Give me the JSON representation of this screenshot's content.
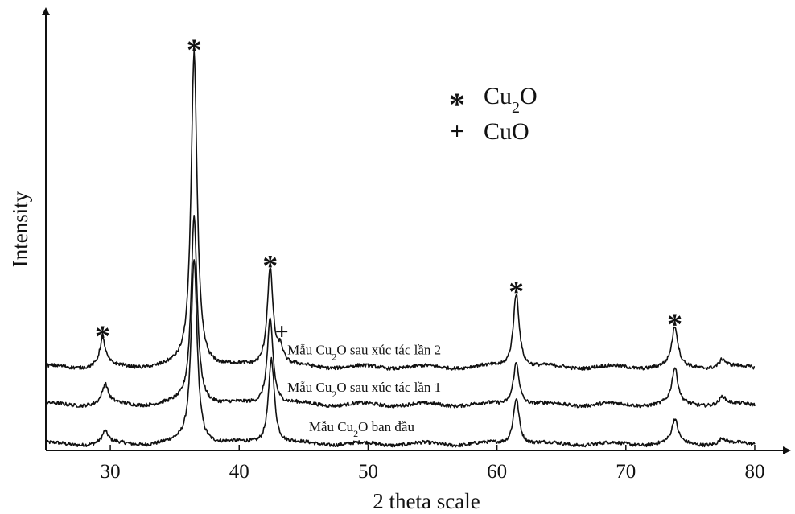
{
  "chart_data": {
    "type": "line",
    "title": "",
    "xlabel": "2 theta scale",
    "ylabel": "Intensity",
    "xlim": [
      25,
      82
    ],
    "ylim": [
      0,
      1.0
    ],
    "x_ticks": [
      30,
      40,
      50,
      60,
      70,
      80
    ],
    "grid": false,
    "y_tick_labels": false,
    "peak_width": 0.28,
    "series": [
      {
        "name": "Mẫu Cu2O ban đầu",
        "offset": 0.0,
        "peaks": [
          [
            29.6,
            0.03
          ],
          [
            36.5,
            0.47
          ],
          [
            42.5,
            0.22
          ],
          [
            61.5,
            0.12
          ],
          [
            73.8,
            0.06
          ],
          [
            77.5,
            0.015
          ]
        ]
      },
      {
        "name": "Mẫu Cu2O sau xúc tác lần 1",
        "offset": 0.1,
        "peaks": [
          [
            29.6,
            0.05
          ],
          [
            36.5,
            0.48
          ],
          [
            42.4,
            0.22
          ],
          [
            61.5,
            0.11
          ],
          [
            73.8,
            0.09
          ],
          [
            77.5,
            0.02
          ]
        ]
      },
      {
        "name": "Mẫu Cu2O sau xúc tác lần 2",
        "offset": 0.195,
        "peaks": [
          [
            29.4,
            0.07
          ],
          [
            36.5,
            0.8
          ],
          [
            42.4,
            0.25
          ],
          [
            43.2,
            0.04
          ],
          [
            61.5,
            0.19
          ],
          [
            73.8,
            0.1
          ],
          [
            77.5,
            0.02
          ]
        ]
      }
    ],
    "series_labels": [
      {
        "label_pre": "Mẫu Cu",
        "label_sub": "2",
        "label_post": "O ban đầu",
        "at_x": 49.5
      },
      {
        "label_pre": "Mẫu Cu",
        "label_sub": "2",
        "label_post": "O sau xúc tác lần 1",
        "at_x": 49.7
      },
      {
        "label_pre": "Mẫu Cu",
        "label_sub": "2",
        "label_post": "O sau xúc tác lần 2",
        "at_x": 49.7
      }
    ],
    "peak_markers": [
      {
        "symbol": "*",
        "x": 29.4
      },
      {
        "symbol": "*",
        "x": 36.5
      },
      {
        "symbol": "*",
        "x": 42.4
      },
      {
        "symbol": "+",
        "x": 43.3
      },
      {
        "symbol": "*",
        "x": 61.5
      },
      {
        "symbol": "*",
        "x": 73.8
      }
    ],
    "legend": {
      "position": "top-center",
      "entries": [
        {
          "symbol": "*",
          "text_pre": "Cu",
          "text_sub": "2",
          "text_post": "O"
        },
        {
          "symbol": "+",
          "text_pre": "CuO",
          "text_sub": "",
          "text_post": ""
        }
      ]
    }
  }
}
